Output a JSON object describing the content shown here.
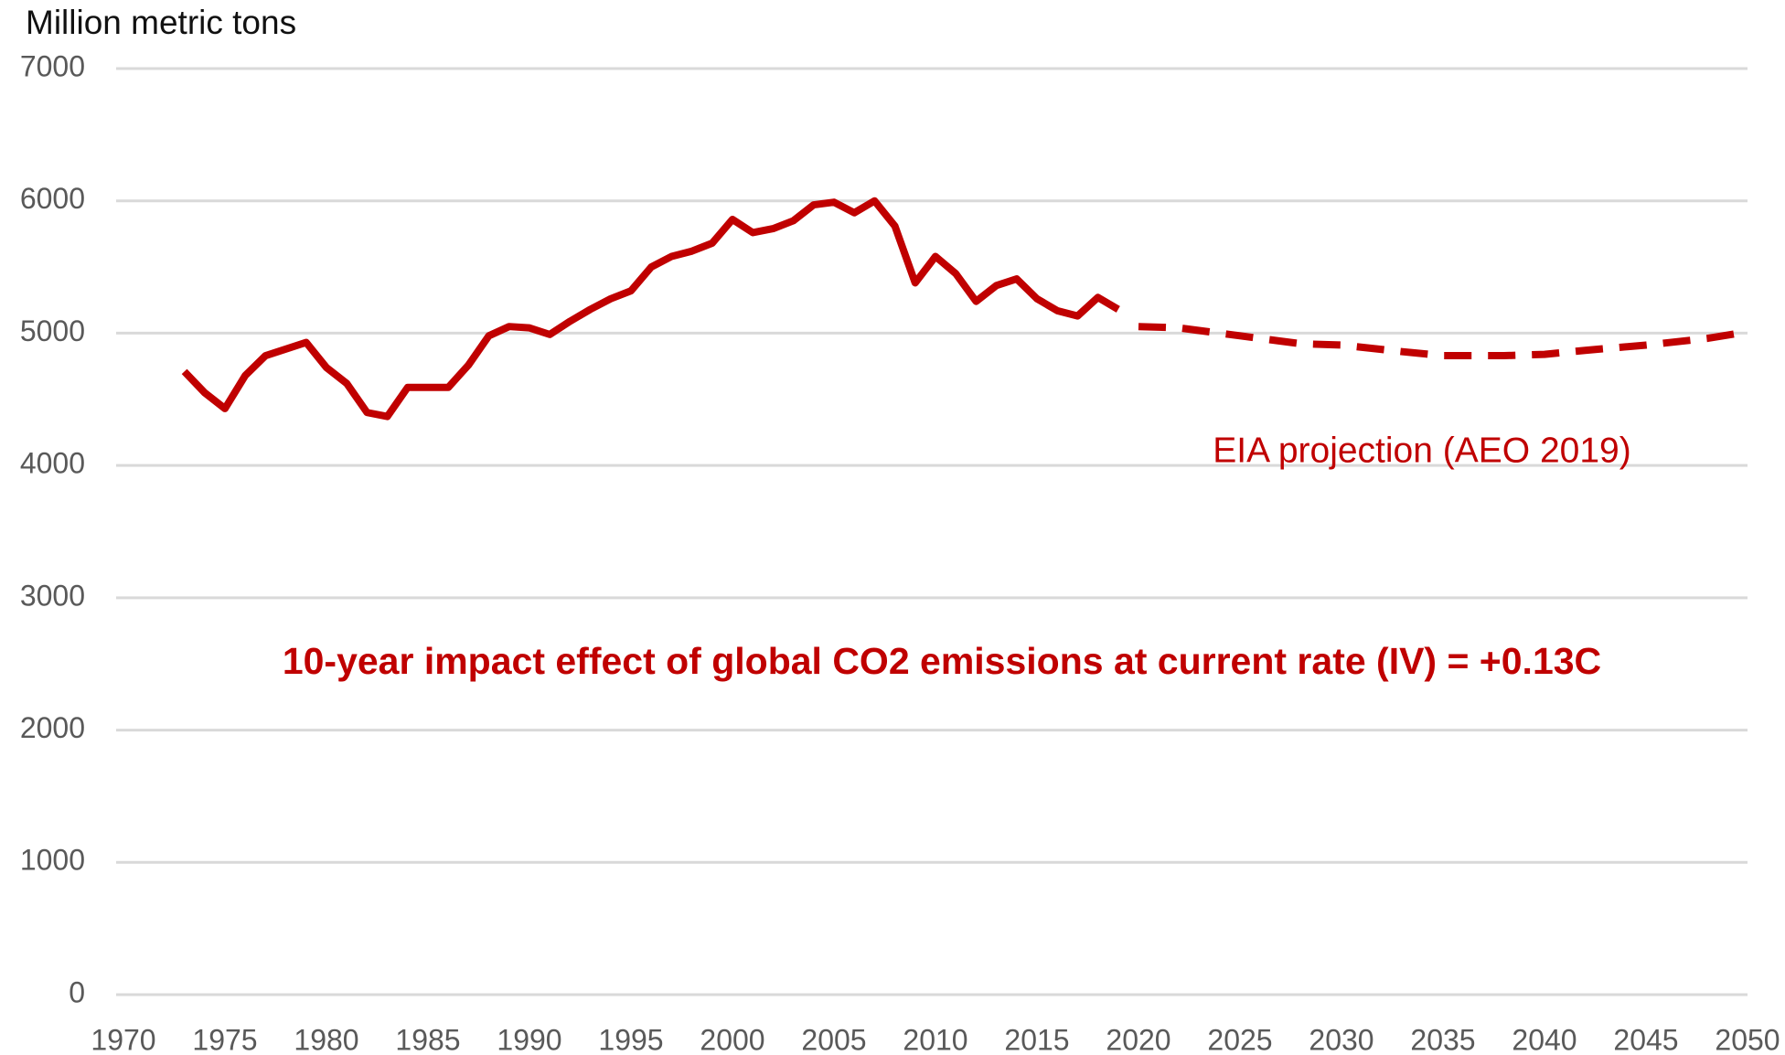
{
  "chart_data": {
    "type": "line",
    "y_label": "Million metric tons",
    "annotations": [
      "EIA projection (AEO 2019)",
      "10-year impact effect of global CO2 emissions at current rate (IV) = +0.13C"
    ],
    "color": "#c00000",
    "series": [
      {
        "color": "#c00000",
        "dashed": false,
        "x": [
          1973,
          1974,
          1975,
          1976,
          1977,
          1978,
          1979,
          1980,
          1981,
          1982,
          1983,
          1984,
          1985,
          1986,
          1987,
          1988,
          1989,
          1990,
          1991,
          1992,
          1993,
          1994,
          1995,
          1996,
          1997,
          1998,
          1999,
          2000,
          2001,
          2002,
          2003,
          2004,
          2005,
          2006,
          2007,
          2008,
          2009,
          2010,
          2011,
          2012,
          2013,
          2014,
          2015,
          2016,
          2017,
          2018,
          2019
        ],
        "values": [
          4710,
          4550,
          4430,
          4680,
          4830,
          4880,
          4930,
          4740,
          4620,
          4400,
          4370,
          4590,
          4590,
          4590,
          4760,
          4980,
          5050,
          5040,
          4990,
          5090,
          5180,
          5260,
          5320,
          5500,
          5580,
          5620,
          5680,
          5860,
          5760,
          5790,
          5850,
          5970,
          5990,
          5910,
          6000,
          5810,
          5380,
          5580,
          5450,
          5240,
          5360,
          5410,
          5260,
          5170,
          5130,
          5270,
          5180
        ]
      },
      {
        "color": "#c00000",
        "dashed": true,
        "x": [
          2020,
          2022,
          2025,
          2028,
          2030,
          2033,
          2035,
          2038,
          2040,
          2042,
          2045,
          2048,
          2050
        ],
        "values": [
          5050,
          5040,
          4980,
          4920,
          4910,
          4860,
          4830,
          4830,
          4840,
          4870,
          4910,
          4960,
          5010
        ]
      }
    ],
    "xlim": [
      1970,
      2050
    ],
    "xticks": [
      1970,
      1975,
      1980,
      1985,
      1990,
      1995,
      2000,
      2005,
      2010,
      2015,
      2020,
      2025,
      2030,
      2035,
      2040,
      2045,
      2050
    ],
    "ylim": [
      0,
      7000
    ],
    "yticks": [
      0,
      1000,
      2000,
      3000,
      4000,
      5000,
      6000,
      7000
    ],
    "grid": true
  }
}
